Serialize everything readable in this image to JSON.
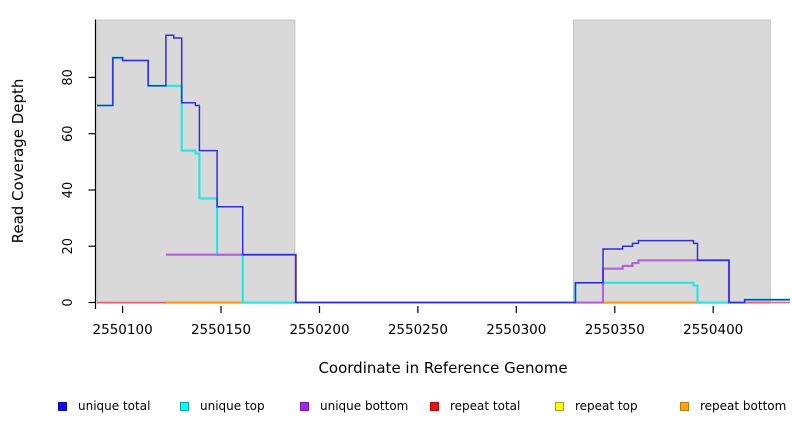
{
  "figure": {
    "background": "#ffffff",
    "plot_bg_left_region": "#d9d9d9",
    "plot_bg_right_region": "#d9d9d9"
  },
  "chart_data": {
    "type": "line",
    "subtype": "step-post-coverage",
    "title": "",
    "xlabel": "Coordinate in Reference Genome",
    "ylabel": "Read Coverage Depth",
    "xlim": [
      2550087,
      2550439
    ],
    "ylim": [
      0,
      100.4
    ],
    "xticks": [
      2550100,
      2550150,
      2550200,
      2550250,
      2550300,
      2550350,
      2550400
    ],
    "yticks": [
      0,
      20,
      40,
      60,
      80
    ],
    "grid": false,
    "axis_color": "#000000",
    "shaded_regions": [
      {
        "name": "left-gray-region",
        "x0": 2550087,
        "x1": 2550187.5,
        "fill": "#d9d9d9",
        "border": "#c3c3c3"
      },
      {
        "name": "right-gray-region",
        "x0": 2550329,
        "x1": 2550429,
        "fill": "#d9d9d9",
        "border": "#c3c3c3"
      }
    ],
    "series": [
      {
        "name": "repeat total",
        "color": "#e26270",
        "width": 1.4,
        "parts": [
          {
            "points": [
              [
                2550087,
                0
              ]
            ],
            "end": 2550439
          }
        ]
      },
      {
        "name": "repeat top",
        "color": "#8ed88e",
        "width": 1.5,
        "note": "renders pale green where yellow overlaps cyan at depth 0",
        "parts": [
          {
            "points": [
              [
                2550161,
                0
              ]
            ],
            "end": 2550188
          },
          {
            "points": [
              [
                2550392,
                0
              ]
            ],
            "end": 2550416
          }
        ]
      },
      {
        "name": "repeat bottom",
        "color": "#ff9b17",
        "width": 1.5,
        "parts": [
          {
            "points": [
              [
                2550122,
                0
              ]
            ],
            "end": 2550161
          },
          {
            "points": [
              [
                2550344,
                0
              ]
            ],
            "end": 2550392
          }
        ]
      },
      {
        "name": "unique top",
        "color": "#25e5e5",
        "width": 2.1,
        "parts": [
          {
            "points": [
              [
                2550087,
                70
              ],
              [
                2550095,
                87
              ],
              [
                2550100,
                86
              ],
              [
                2550113,
                77
              ],
              [
                2550130,
                54
              ],
              [
                2550137,
                53
              ],
              [
                2550139,
                37
              ],
              [
                2550148,
                17
              ],
              [
                2550161,
                0
              ],
              [
                2550330,
                7
              ],
              [
                2550390,
                6
              ],
              [
                2550392,
                0
              ],
              [
                2550416,
                1
              ]
            ],
            "end": 2550439
          }
        ]
      },
      {
        "name": "unique bottom",
        "color": "#b163de",
        "width": 2.1,
        "parts": [
          {
            "points": [
              [
                2550122,
                17
              ],
              [
                2550188,
                0
              ],
              [
                2550344,
                12
              ],
              [
                2550354,
                13
              ],
              [
                2550359,
                14
              ],
              [
                2550362,
                15
              ],
              [
                2550408,
                0
              ]
            ],
            "end": 2550416
          }
        ]
      },
      {
        "name": "unique total",
        "color": "#3030d9",
        "width": 1.5,
        "parts": [
          {
            "points": [
              [
                2550087,
                70
              ],
              [
                2550095,
                87
              ],
              [
                2550100,
                86
              ],
              [
                2550113,
                77
              ],
              [
                2550122,
                95
              ],
              [
                2550126,
                94
              ],
              [
                2550130,
                71
              ],
              [
                2550137,
                70
              ],
              [
                2550139,
                54
              ],
              [
                2550148,
                34
              ],
              [
                2550161,
                17
              ],
              [
                2550188,
                0
              ],
              [
                2550330,
                7
              ],
              [
                2550344,
                19
              ],
              [
                2550354,
                20
              ],
              [
                2550359,
                21
              ],
              [
                2550362,
                22
              ],
              [
                2550390,
                21
              ],
              [
                2550392,
                15
              ],
              [
                2550408,
                0
              ],
              [
                2550416,
                1
              ]
            ],
            "end": 2550439
          }
        ]
      }
    ],
    "legend": {
      "position": "bottom",
      "items": [
        {
          "label": "unique total",
          "color": "#0f0fe8",
          "border": "#0a0aa8"
        },
        {
          "label": "unique top",
          "color": "#00ffff",
          "border": "#0b9f9f"
        },
        {
          "label": "unique bottom",
          "color": "#a125f0",
          "border": "#7719b4"
        },
        {
          "label": "repeat total",
          "color": "#ee1111",
          "border": "#a80b0b"
        },
        {
          "label": "repeat top",
          "color": "#ffff00",
          "border": "#9f9f0b"
        },
        {
          "label": "repeat bottom",
          "color": "#ffa510",
          "border": "#b87a0a"
        }
      ]
    }
  }
}
